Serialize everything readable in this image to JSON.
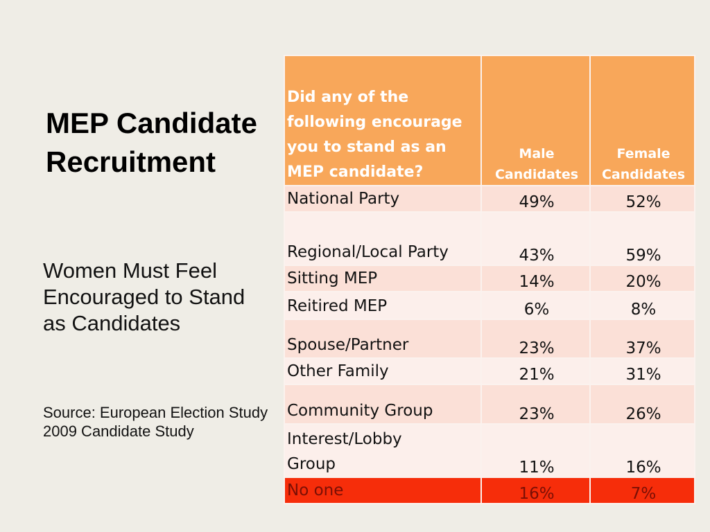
{
  "slide": {
    "title": "MEP Candidate Recruitment",
    "subtitle": "Women Must Feel Encouraged to Stand as Candidates",
    "source": "Source: European Election Study 2009 Candidate Study"
  },
  "table": {
    "headers": {
      "question": "Did any of the following encourage you to stand as an MEP candidate?",
      "male": "Male Candidates",
      "female": "Female Candidates"
    },
    "rows": [
      {
        "label": "National Party",
        "male": "49%",
        "female": "52%"
      },
      {
        "label": "Regional/Local Party",
        "male": "43%",
        "female": "59%"
      },
      {
        "label": "Sitting MEP",
        "male": "14%",
        "female": "20%"
      },
      {
        "label": "Reitired MEP",
        "male": "6%",
        "female": "8%"
      },
      {
        "label": "Spouse/Partner",
        "male": "23%",
        "female": "37%"
      },
      {
        "label": "Other Family",
        "male": "21%",
        "female": "31%"
      },
      {
        "label": "Community Group",
        "male": "23%",
        "female": "26%"
      },
      {
        "label": "Interest/Lobby Group",
        "male": "11%",
        "female": "16%"
      },
      {
        "label": "No one",
        "male": "16%",
        "female": "7%"
      }
    ]
  },
  "colors": {
    "header": "#f8a75a",
    "row_dark": "#fbe0d7",
    "row_light": "#fcefeb",
    "highlight": "#f62d0a",
    "background": "#efede6"
  }
}
